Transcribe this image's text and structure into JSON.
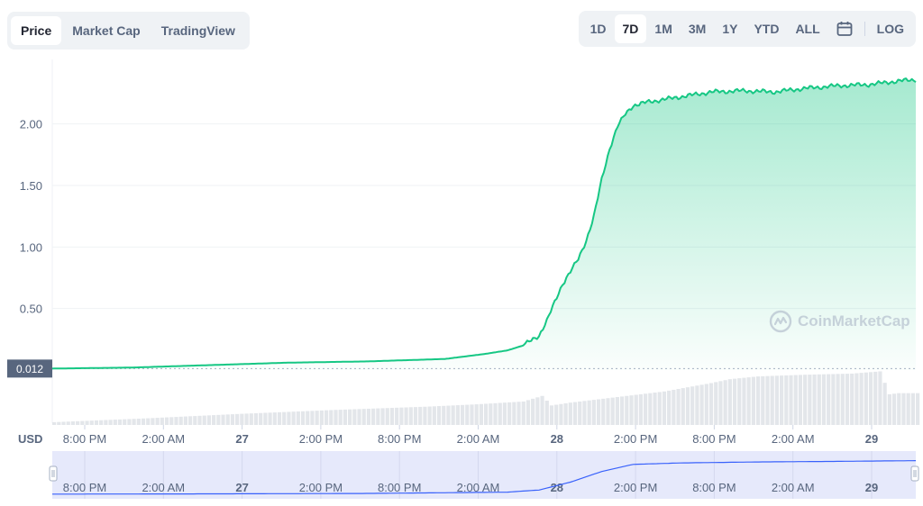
{
  "tabs": [
    {
      "label": "Price",
      "active": true
    },
    {
      "label": "Market Cap",
      "active": false
    },
    {
      "label": "TradingView",
      "active": false
    }
  ],
  "ranges": [
    {
      "label": "1D",
      "active": false
    },
    {
      "label": "7D",
      "active": true
    },
    {
      "label": "1M",
      "active": false
    },
    {
      "label": "3M",
      "active": false
    },
    {
      "label": "1Y",
      "active": false
    },
    {
      "label": "YTD",
      "active": false
    },
    {
      "label": "ALL",
      "active": false
    }
  ],
  "log_label": "LOG",
  "currency_label": "USD",
  "watermark": "CoinMarketCap",
  "icons": {
    "calendar": "calendar-icon",
    "logo": "coinmarketcap-logo-icon"
  },
  "colors": {
    "line": "#16c784",
    "tab_bg": "#eff2f5",
    "text": "#58667e",
    "navigator_fill": "#e6e9fb",
    "navigator_line": "#3861fb"
  },
  "chart_data": {
    "type": "area",
    "ylabel": "",
    "ylim": [
      0,
      2.4
    ],
    "yticks": [
      "0.50",
      "1.00",
      "1.50",
      "2.00"
    ],
    "ytick_values": [
      0.5,
      1.0,
      1.5,
      2.0
    ],
    "current_label": "0.012",
    "current_value": 0.012,
    "xlim_hours": [
      0,
      156
    ],
    "xticks": [
      {
        "label": "8:00 PM",
        "bold": false
      },
      {
        "label": "2:00 AM",
        "bold": false
      },
      {
        "label": "27",
        "bold": true
      },
      {
        "label": "2:00 PM",
        "bold": false
      },
      {
        "label": "8:00 PM",
        "bold": false
      },
      {
        "label": "2:00 AM",
        "bold": false
      },
      {
        "label": "28",
        "bold": true
      },
      {
        "label": "2:00 PM",
        "bold": false
      },
      {
        "label": "8:00 PM",
        "bold": false
      },
      {
        "label": "2:00 AM",
        "bold": false
      },
      {
        "label": "29",
        "bold": true
      }
    ],
    "xtick_hours": [
      2,
      8,
      14,
      20,
      26,
      32,
      38,
      44,
      50,
      56,
      62
    ],
    "series": [
      {
        "values": [
          [
            0,
            0.012
          ],
          [
            10,
            0.02
          ],
          [
            20,
            0.04
          ],
          [
            30,
            0.06
          ],
          [
            40,
            0.07
          ],
          [
            50,
            0.09
          ],
          [
            55,
            0.13
          ],
          [
            58,
            0.16
          ],
          [
            60,
            0.2
          ],
          [
            62,
            0.28
          ],
          [
            63,
            0.4
          ],
          [
            64,
            0.55
          ],
          [
            65,
            0.7
          ],
          [
            66,
            0.8
          ],
          [
            67,
            0.9
          ],
          [
            68,
            1.05
          ],
          [
            69,
            1.25
          ],
          [
            70,
            1.55
          ],
          [
            71,
            1.8
          ],
          [
            72,
            1.98
          ],
          [
            73,
            2.08
          ],
          [
            74,
            2.15
          ],
          [
            76,
            2.18
          ],
          [
            80,
            2.22
          ],
          [
            84,
            2.26
          ],
          [
            88,
            2.27
          ],
          [
            92,
            2.26
          ],
          [
            96,
            2.29
          ],
          [
            100,
            2.31
          ],
          [
            104,
            2.32
          ],
          [
            108,
            2.35
          ],
          [
            110,
            2.36
          ]
        ]
      }
    ],
    "volume": {
      "values": [
        [
          0,
          0.05
        ],
        [
          10,
          0.12
        ],
        [
          20,
          0.2
        ],
        [
          30,
          0.27
        ],
        [
          40,
          0.33
        ],
        [
          45,
          0.37
        ],
        [
          50,
          0.42
        ],
        [
          52,
          0.52
        ],
        [
          53,
          0.35
        ],
        [
          55,
          0.4
        ],
        [
          60,
          0.5
        ],
        [
          65,
          0.6
        ],
        [
          70,
          0.75
        ],
        [
          72,
          0.82
        ],
        [
          75,
          0.87
        ],
        [
          80,
          0.9
        ],
        [
          85,
          0.92
        ],
        [
          88,
          0.96
        ],
        [
          89,
          0.55
        ],
        [
          90,
          0.57
        ],
        [
          92,
          0.57
        ]
      ]
    },
    "navigator": {
      "values": [
        [
          0,
          0.012
        ],
        [
          20,
          0.03
        ],
        [
          40,
          0.06
        ],
        [
          58,
          0.15
        ],
        [
          62,
          0.3
        ],
        [
          66,
          0.85
        ],
        [
          70,
          1.6
        ],
        [
          74,
          2.1
        ],
        [
          80,
          2.2
        ],
        [
          90,
          2.27
        ],
        [
          100,
          2.31
        ],
        [
          110,
          2.36
        ]
      ]
    }
  }
}
